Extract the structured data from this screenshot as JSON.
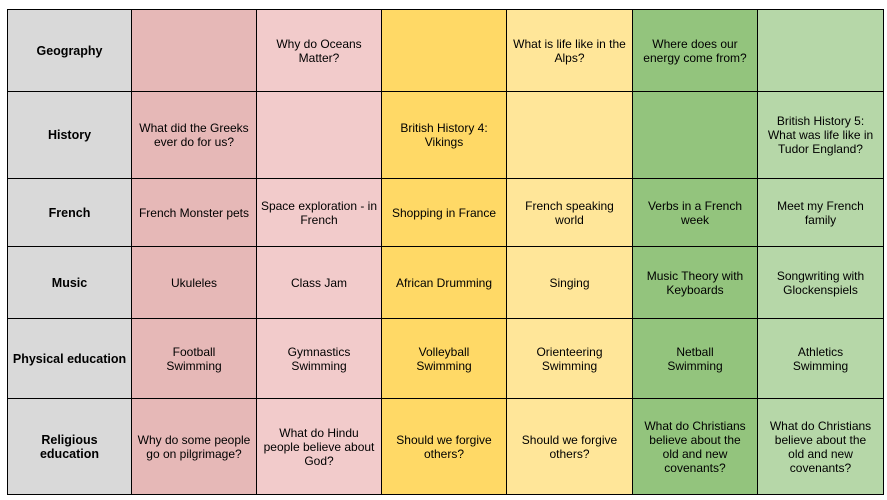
{
  "colors": {
    "subject_bg": "#d9d9d9",
    "col1": "#e6b8b7",
    "col2": "#f2cbcb",
    "col3": "#ffd966",
    "col4": "#ffe699",
    "col5": "#93c47d",
    "col6": "#b6d7a8"
  },
  "rows": [
    {
      "subject": "Geography",
      "cells": [
        "",
        "Why do Oceans\nMatter?",
        "",
        "What is life like in the\nAlps?",
        "Where does our\nenergy come from?",
        ""
      ]
    },
    {
      "subject": "History",
      "cells": [
        "What did the Greeks\never do for us?",
        "",
        "British History 4:\nVikings",
        "",
        "",
        "British History 5:\nWhat was life like in\nTudor England?"
      ]
    },
    {
      "subject": "French",
      "cells": [
        "French Monster pets",
        "Space exploration - in\nFrench",
        "Shopping in France",
        "French speaking world",
        "Verbs in a French week",
        "Meet my French family"
      ]
    },
    {
      "subject": "Music",
      "cells": [
        "Ukuleles",
        "Class Jam",
        "African Drumming",
        "Singing",
        "Music Theory with\nKeyboards",
        "Songwriting with\nGlockenspiels"
      ]
    },
    {
      "subject": "Physical education",
      "cells": [
        "Football\nSwimming",
        "Gymnastics\nSwimming",
        "Volleyball\nSwimming",
        "Orienteering\nSwimming",
        "Netball\nSwimming",
        "Athletics\nSwimming"
      ]
    },
    {
      "subject": "Religious education",
      "cells": [
        "Why do some people\ngo on pilgrimage?",
        "What do Hindu\npeople believe about\nGod?",
        "Should we forgive\nothers?",
        "Should we forgive\nothers?",
        "What do Christians\nbelieve about the\nold and new\ncovenants?",
        "What do Christians\nbelieve about the\nold and new\ncovenants?"
      ]
    }
  ]
}
